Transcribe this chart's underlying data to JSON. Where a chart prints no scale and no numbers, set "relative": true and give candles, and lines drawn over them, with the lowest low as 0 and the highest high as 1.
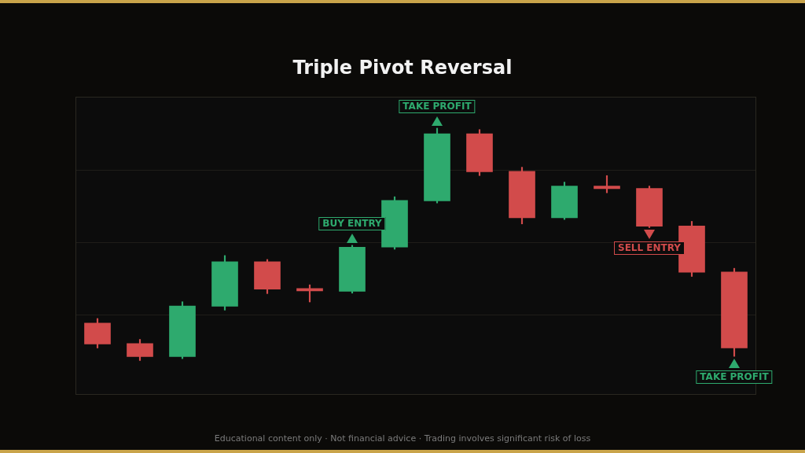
{
  "chart_data": {
    "type": "candlestick",
    "title": "Triple Pivot Reversal",
    "relative": true,
    "grid": "y",
    "legend": false,
    "categories": [
      null,
      null,
      null,
      null,
      null,
      null,
      null,
      null,
      null,
      null,
      null,
      null,
      null,
      null,
      null,
      null
    ],
    "ohlc": [
      [
        0.161,
        0.181,
        0.054,
        0.071
      ],
      [
        0.073,
        0.091,
        0,
        0.017
      ],
      [
        0.017,
        0.253,
        0.008,
        0.235
      ],
      [
        0.234,
        0.452,
        0.217,
        0.425
      ],
      [
        0.425,
        0.435,
        0.288,
        0.307
      ],
      [
        0.308,
        0.326,
        0.252,
        0.3
      ],
      [
        0.298,
        0.496,
        0.29,
        0.488
      ],
      [
        0.488,
        0.705,
        0.479,
        0.689
      ],
      [
        0.687,
        1,
        0.678,
        0.976
      ],
      [
        0.976,
        0.994,
        0.796,
        0.812
      ],
      [
        0.814,
        0.832,
        0.588,
        0.614
      ],
      [
        0.614,
        0.768,
        0.607,
        0.751
      ],
      [
        0.751,
        0.796,
        0.722,
        0.74
      ],
      [
        0.741,
        0.751,
        0.572,
        0.578
      ],
      [
        0.579,
        0.599,
        0.362,
        0.38
      ],
      [
        0.381,
        0.397,
        0.018,
        0.054
      ]
    ],
    "colors": [
      "#d24b4b",
      "#d24b4b",
      "#2eaa6e",
      "#2eaa6e",
      "#d24b4b",
      "#d24b4b",
      "#2eaa6e",
      "#2eaa6e",
      "#2eaa6e",
      "#d24b4b",
      "#d24b4b",
      "#2eaa6e",
      "#d24b4b",
      "#d24b4b",
      "#d24b4b",
      "#d24b4b"
    ],
    "annotations": [
      {
        "text": "BUY ENTRY",
        "y": 0.496
      },
      {
        "text": "TAKE PROFIT",
        "y": 1
      },
      {
        "text": "SELL ENTRY",
        "y": 0.572
      },
      {
        "text": "TAKE PROFIT",
        "y": 0.018
      },
      "Educational content only · Not financial advice · Trading involves significant risk of loss"
    ]
  }
}
